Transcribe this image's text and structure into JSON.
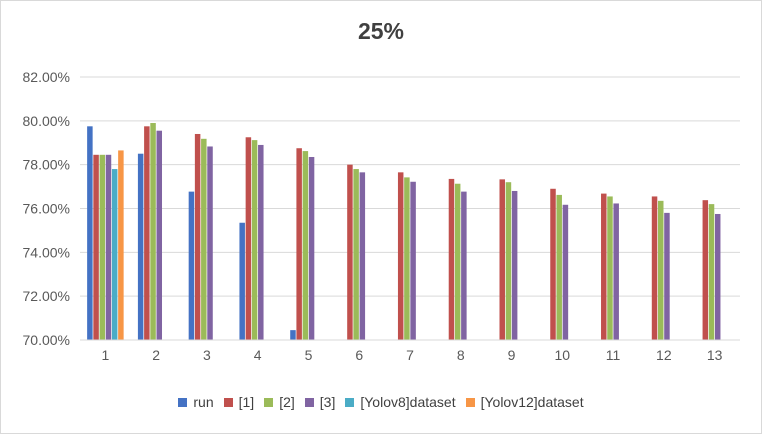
{
  "chart_data": {
    "type": "bar",
    "title": "25%",
    "xlabel": "",
    "ylabel": "",
    "categories": [
      "1",
      "2",
      "3",
      "4",
      "5",
      "6",
      "7",
      "8",
      "9",
      "10",
      "11",
      "12",
      "13"
    ],
    "ylim": [
      0.7,
      0.82
    ],
    "yticks": [
      0.7,
      0.72,
      0.74,
      0.76,
      0.78,
      0.8,
      0.82
    ],
    "ytick_labels": [
      "70.00%",
      "72.00%",
      "74.00%",
      "76.00%",
      "78.00%",
      "80.00%",
      "82.00%"
    ],
    "grid": "horizontal",
    "legend_position": "bottom",
    "series": [
      {
        "name": "run",
        "color": "#4472c4",
        "values": [
          0.7975,
          0.785,
          0.7677,
          0.7535,
          0.7045,
          null,
          null,
          null,
          null,
          null,
          null,
          null,
          null
        ]
      },
      {
        "name": "[1]",
        "color": "#c0504d",
        "values": [
          0.7845,
          0.7975,
          0.794,
          0.7925,
          0.7875,
          0.78,
          0.7765,
          0.7735,
          0.7733,
          0.769,
          0.7668,
          0.7655,
          0.7638
        ]
      },
      {
        "name": "[2]",
        "color": "#9bbb59",
        "values": [
          0.7845,
          0.799,
          0.7918,
          0.7912,
          0.7862,
          0.778,
          0.7742,
          0.7713,
          0.772,
          0.7662,
          0.7655,
          0.7635,
          0.762
        ]
      },
      {
        "name": "[3]",
        "color": "#8064a2",
        "values": [
          0.7845,
          0.7955,
          0.7883,
          0.789,
          0.7835,
          0.7765,
          0.7722,
          0.7677,
          0.768,
          0.7617,
          0.7623,
          0.758,
          0.7575
        ]
      },
      {
        "name": "[Yolov8]dataset",
        "color": "#4bacc6",
        "values": [
          0.778,
          null,
          null,
          null,
          null,
          null,
          null,
          null,
          null,
          null,
          null,
          null,
          null
        ]
      },
      {
        "name": "[Yolov12]dataset",
        "color": "#f79646",
        "values": [
          0.7865,
          null,
          null,
          null,
          null,
          null,
          null,
          null,
          null,
          null,
          null,
          null,
          null
        ]
      }
    ]
  }
}
